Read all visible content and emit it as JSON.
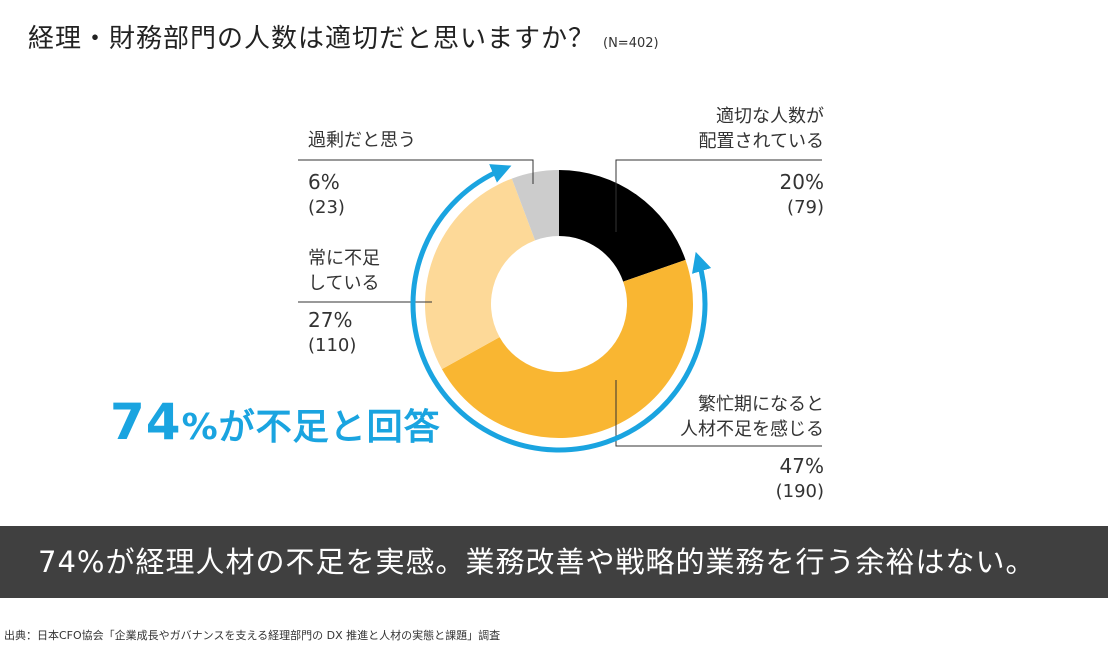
{
  "title": "経理・財務部門の人数は適切だと思いますか？",
  "sample_size": "(N=402)",
  "chart_data": {
    "type": "pie",
    "donut": true,
    "total": 402,
    "slices": [
      {
        "label": "適切な人数が配置されている",
        "line1": "適切な人数が",
        "line2": "配置されている",
        "percent_label": "20%",
        "count_label": "(79)",
        "value": 79,
        "color": "#000000"
      },
      {
        "label": "繁忙期になると人材不足を感じる",
        "line1": "繁忙期になると",
        "line2": "人材不足を感じる",
        "percent_label": "47%",
        "count_label": "(190)",
        "value": 190,
        "color": "#f9b632"
      },
      {
        "label": "常に不足している",
        "line1": "常に不足",
        "line2": "している",
        "percent_label": "27%",
        "count_label": "(110)",
        "value": 110,
        "color": "#fdd998"
      },
      {
        "label": "過剰だと思う",
        "line1": "過剰だと思う",
        "line2": "",
        "percent_label": "6%",
        "count_label": "(23)",
        "value": 23,
        "color": "#cccccc"
      }
    ],
    "highlight_arc_color": "#1aa4e0"
  },
  "highlight": {
    "number": "74",
    "unit": "%",
    "text": "が不足と回答"
  },
  "banner": "74%が経理人材の不足を実感。業務改善や戦略的業務を行う余裕はない。",
  "source": "出典：日本CFO協会「企業成長やガバナンスを支える経理部門の DX 推進と人材の実態と課題」調査"
}
